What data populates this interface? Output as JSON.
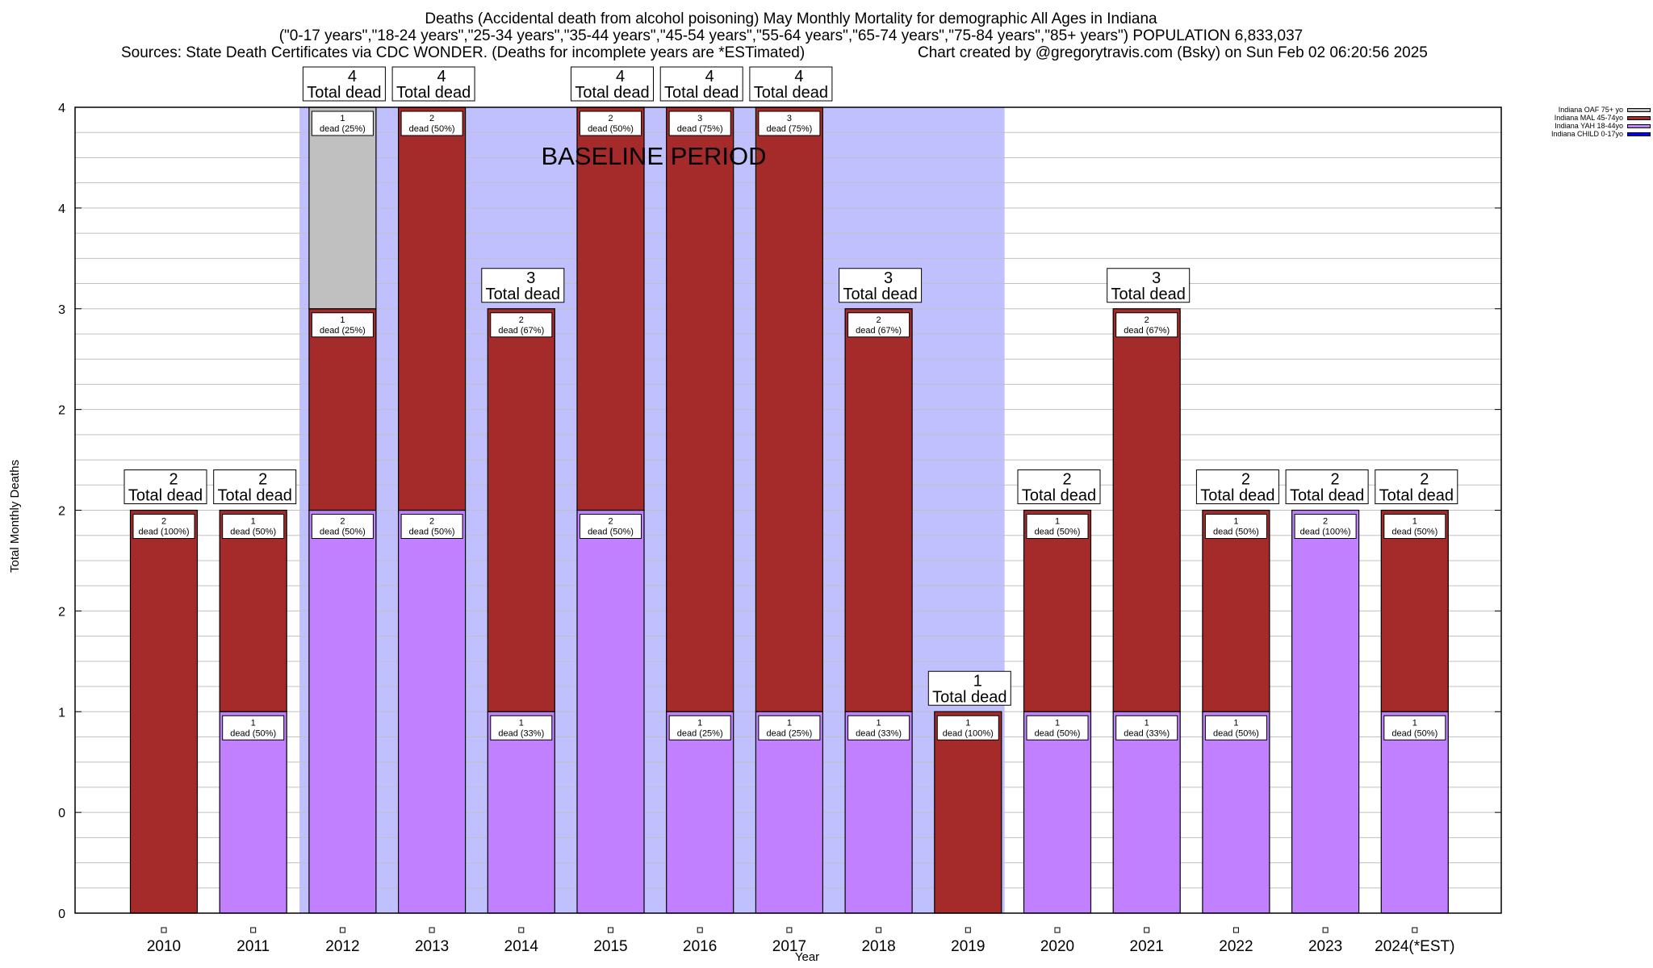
{
  "title_lines": {
    "line1": "Deaths (Accidental death from alcohol poisoning) May Monthly Mortality for demographic All Ages in Indiana",
    "line2": "(\"0-17 years\",\"18-24 years\",\"25-34 years\",\"35-44 years\",\"45-54 years\",\"55-64 years\",\"65-74 years\",\"75-84 years\",\"85+ years\") POPULATION 6,833,037",
    "line3_left": "Sources: State Death Certificates via CDC WONDER. (Deaths for incomplete years are *ESTimated)",
    "line3_right": "Chart created by @gregorytravis.com (Bsky) on Sun Feb 02 06:20:56 2025"
  },
  "legend_items": [
    {
      "label": "Indiana OAF 75+ yo",
      "color": "#c0c0c0"
    },
    {
      "label": "Indiana MAL 45-74yo",
      "color": "#a52a2a"
    },
    {
      "label": "Indiana YAH 18-44yo",
      "color": "#c080ff"
    },
    {
      "label": "Indiana CHILD 0-17yo",
      "color": "#0000ff"
    }
  ],
  "chart_data": {
    "type": "bar",
    "stacked": true,
    "title": "Deaths (Accidental death from alcohol poisoning) May Monthly Mortality for demographic All Ages in Indiana",
    "xlabel": "Year",
    "ylabel": "Total Monthly Deaths",
    "ylim": [
      0,
      4
    ],
    "yticks": [
      0,
      0.5,
      1,
      1.5,
      2,
      2.5,
      3,
      3.5,
      4
    ],
    "ytick_labels": [
      "0",
      "0",
      "1",
      "2",
      "2",
      "2",
      "3",
      "4",
      "4"
    ],
    "grid": true,
    "legend_position": "top-right-outside",
    "categories": [
      "2010",
      "2011",
      "2012",
      "2013",
      "2014",
      "2015",
      "2016",
      "2017",
      "2018",
      "2019",
      "2020",
      "2021",
      "2022",
      "2023",
      "2024(*EST)"
    ],
    "series": [
      {
        "name": "Indiana CHILD 0-17yo",
        "color": "#0000ff",
        "values": [
          0,
          0,
          0,
          0,
          0,
          0,
          0,
          0,
          0,
          0,
          0,
          0,
          0,
          0,
          0
        ]
      },
      {
        "name": "Indiana YAH 18-44yo",
        "color": "#c080ff",
        "values": [
          0,
          1,
          2,
          2,
          1,
          2,
          1,
          1,
          1,
          0,
          1,
          1,
          1,
          2,
          1
        ]
      },
      {
        "name": "Indiana MAL 45-74yo",
        "color": "#a52a2a",
        "values": [
          2,
          1,
          1,
          2,
          2,
          2,
          3,
          3,
          2,
          1,
          1,
          2,
          1,
          0,
          1
        ]
      },
      {
        "name": "Indiana OAF 75+ yo",
        "color": "#c0c0c0",
        "values": [
          0,
          0,
          1,
          0,
          0,
          0,
          0,
          0,
          0,
          0,
          0,
          0,
          0,
          0,
          0
        ]
      }
    ],
    "totals": [
      2,
      2,
      4,
      4,
      3,
      4,
      4,
      4,
      3,
      1,
      2,
      3,
      2,
      2,
      2
    ],
    "total_label_suffix": "Total dead",
    "segment_label_word": "dead",
    "baseline_period": {
      "label": "BASELINE PERIOD",
      "from_category": "2012",
      "to_category": "2019",
      "color": "#c0c0ff"
    }
  }
}
